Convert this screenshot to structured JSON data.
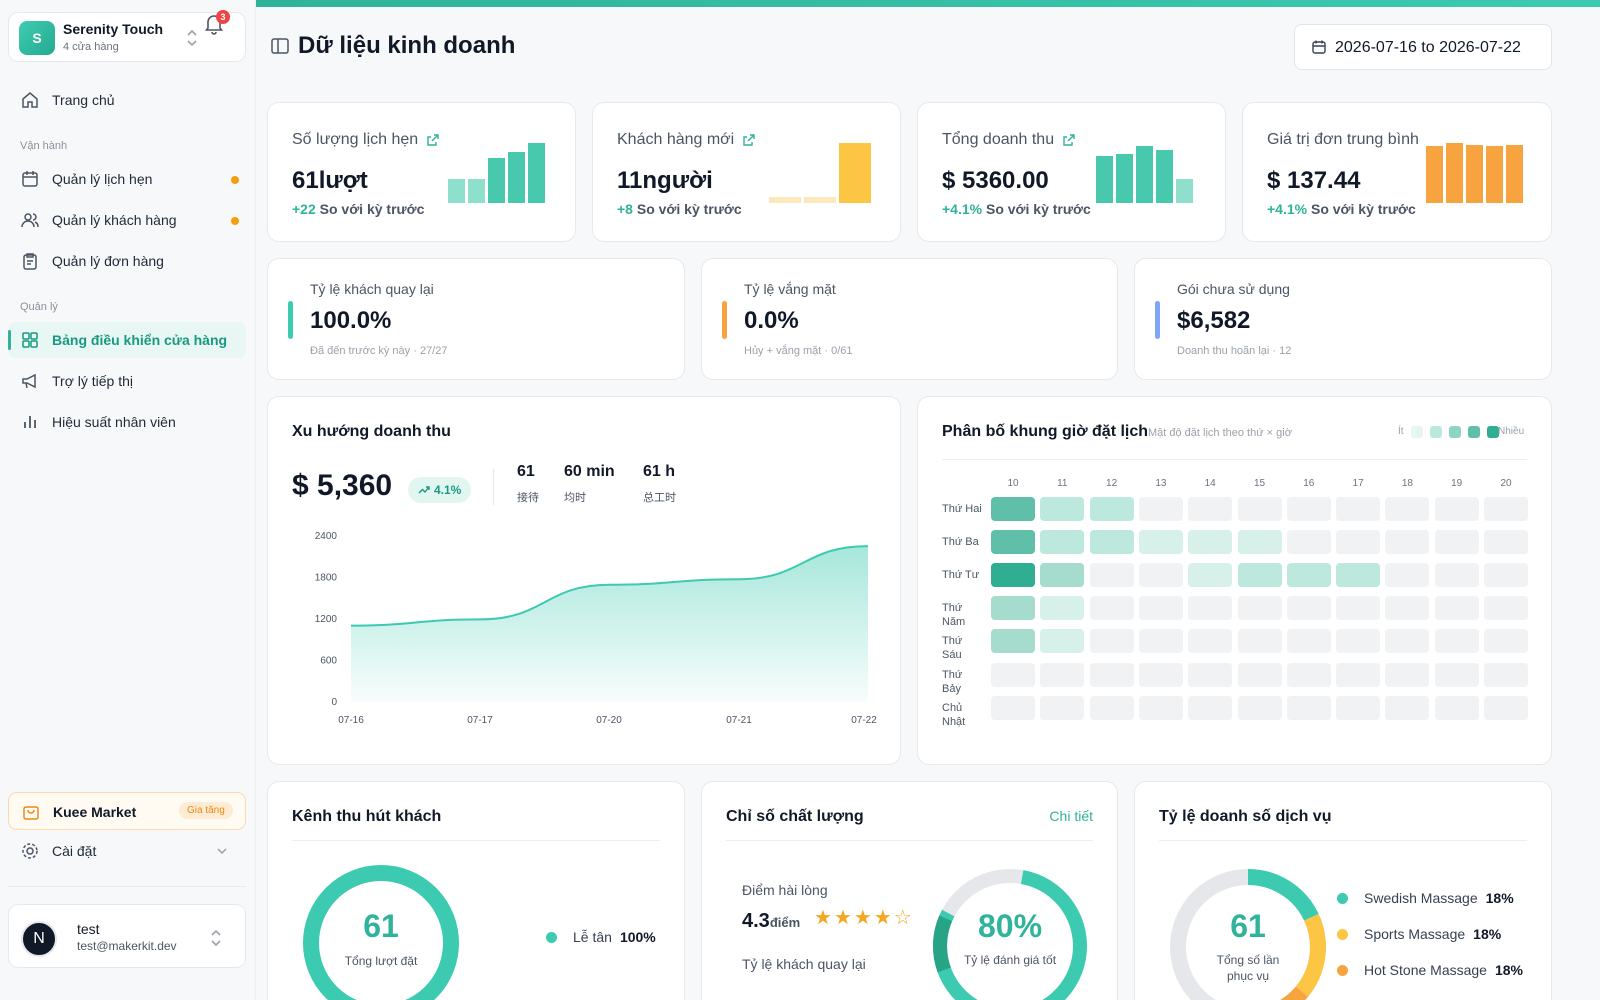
{
  "store": {
    "initial": "S",
    "name": "Serenity Touch",
    "sub": "4 cửa hàng",
    "notifications": "3"
  },
  "nav": {
    "home": "Trang chủ",
    "group_ops": "Vận hành",
    "appointments": "Quản lý lịch hẹn",
    "customers": "Quản lý khách hàng",
    "orders": "Quản lý đơn hàng",
    "group_manage": "Quản lý",
    "dashboard": "Bảng điều khiển cửa hàng",
    "marketing": "Trợ lý tiếp thị",
    "staff": "Hiệu suất nhân viên"
  },
  "market": {
    "label": "Kuee Market",
    "badge": "Gia tăng"
  },
  "settings": {
    "label": "Cài đặt"
  },
  "user": {
    "initial": "N",
    "name": "test",
    "email": "test@makerkit.dev"
  },
  "header": {
    "title": "Dữ liệu kinh doanh",
    "date_range": "2026-07-16 to 2026-07-22"
  },
  "kpis": [
    {
      "title": "Số lượng lịch hẹn",
      "value": "61lượt",
      "change": "+22",
      "change_label": "So với kỳ trước",
      "bars": [
        0.4,
        0.4,
        0.75,
        0.85,
        1.0
      ],
      "bar_colors": [
        "#8fdfcd",
        "#8fdfcd",
        "#48c9ad",
        "#48c9ad",
        "#48c9ad"
      ]
    },
    {
      "title": "Khách hàng mới",
      "value": "11người",
      "change": "+8",
      "change_label": "So với kỳ trước",
      "bars": [
        0.1,
        0.1,
        1.0
      ],
      "bar_colors": [
        "#fde7bd",
        "#fde7bd",
        "#fcc543"
      ]
    },
    {
      "title": "Tổng doanh thu",
      "value": "$ 5360.00",
      "change": "+4.1%",
      "change_label": "So với kỳ trước",
      "bars": [
        0.78,
        0.82,
        0.95,
        0.88,
        0.4
      ],
      "bar_colors": [
        "#48c9ad",
        "#48c9ad",
        "#48c9ad",
        "#48c9ad",
        "#8fdfcd"
      ]
    },
    {
      "title": "Giá trị đơn trung bình",
      "value": "$ 137.44",
      "change": "+4.1%",
      "change_label": "So với kỳ trước",
      "bars": [
        0.95,
        1.0,
        0.97,
        0.95,
        0.97
      ],
      "bar_colors": [
        "#f7a440",
        "#f7a440",
        "#f7a440",
        "#f7a440",
        "#f7a440"
      ]
    }
  ],
  "stats": [
    {
      "title": "Tỷ lệ khách quay lại",
      "value": "100.0%",
      "sub": "Đã đến trước kỳ này · 27/27",
      "color": "#3ccab0"
    },
    {
      "title": "Tỷ lệ vắng mặt",
      "value": "0.0%",
      "sub": "Hủy + vắng mặt · 0/61",
      "color": "#f7a440"
    },
    {
      "title": "Gói chưa sử dụng",
      "value": "$6,582",
      "sub": "Doanh thu hoãn lại · 12",
      "color": "#7ea6f2"
    }
  ],
  "revenue": {
    "title": "Xu hướng doanh thu",
    "total": "$ 5,360",
    "change": "4.1%",
    "stats": [
      {
        "value": "61",
        "label": "接待"
      },
      {
        "value": "60 min",
        "label": "均时"
      },
      {
        "value": "61 h",
        "label": "总工时"
      }
    ]
  },
  "chart_data": {
    "type": "area",
    "x": [
      "07-16",
      "07-17",
      "07-20",
      "07-21",
      "07-22"
    ],
    "y_ticks": [
      "2400",
      "1800",
      "1200",
      "600",
      "0"
    ],
    "ylim": [
      0,
      2400
    ],
    "series": [
      {
        "values": [
          1090,
          1180,
          1680,
          1760,
          2240
        ]
      }
    ],
    "grid": false
  },
  "heatmap": {
    "title": "Phân bố khung giờ đặt lịch",
    "subtitle": "Mật độ đặt lịch theo thứ × giờ",
    "legend_low": "Ít",
    "legend_high": "Nhiều",
    "hours": [
      "10",
      "11",
      "12",
      "13",
      "14",
      "15",
      "16",
      "17",
      "18",
      "19",
      "20"
    ],
    "days": [
      "Thứ Hai",
      "Thứ Ba",
      "Thứ Tư",
      "Thứ Năm",
      "Thứ Sáu",
      "Thứ Bảy",
      "Chủ Nhật"
    ],
    "levels": [
      [
        4,
        2,
        2,
        0,
        0,
        0,
        0,
        0,
        0,
        0,
        0
      ],
      [
        4,
        2,
        2,
        1,
        1,
        1,
        0,
        0,
        0,
        0,
        0
      ],
      [
        5,
        3,
        0,
        0,
        1,
        2,
        2,
        2,
        0,
        0,
        0
      ],
      [
        3,
        1,
        0,
        0,
        0,
        0,
        0,
        0,
        0,
        0,
        0
      ],
      [
        3,
        1,
        0,
        0,
        0,
        0,
        0,
        0,
        0,
        0,
        0
      ],
      [
        0,
        0,
        0,
        0,
        0,
        0,
        0,
        0,
        0,
        0,
        0
      ],
      [
        0,
        0,
        0,
        0,
        0,
        0,
        0,
        0,
        0,
        0,
        0
      ]
    ]
  },
  "channels": {
    "title": "Kênh thu hút khách",
    "center_value": "61",
    "center_label": "Tổng lượt đặt",
    "items": [
      {
        "name": "Lễ tân",
        "pct": "100%",
        "color": "#3ccab0"
      }
    ]
  },
  "quality": {
    "title": "Chỉ số chất lượng",
    "link": "Chi tiết",
    "satisfaction_label": "Điểm hài lòng",
    "score": "4.3",
    "score_unit": "điểm",
    "stars": 4.3,
    "return_label": "Tỷ lệ khách quay lại",
    "gauge_value": "80%",
    "gauge_label": "Tỷ lệ đánh giá tốt",
    "gauge_fraction": 0.8
  },
  "services": {
    "title": "Tỷ lệ doanh số dịch vụ",
    "center_value": "61",
    "center_label": "Tổng số lần phục vụ",
    "items": [
      {
        "name": "Swedish Massage",
        "pct": "18%",
        "fraction": 0.18,
        "color": "#3ccab0"
      },
      {
        "name": "Sports Massage",
        "pct": "18%",
        "fraction": 0.18,
        "color": "#fcc543"
      },
      {
        "name": "Hot Stone Massage",
        "pct": "18%",
        "fraction": 0.18,
        "color": "#f7a440"
      }
    ]
  }
}
